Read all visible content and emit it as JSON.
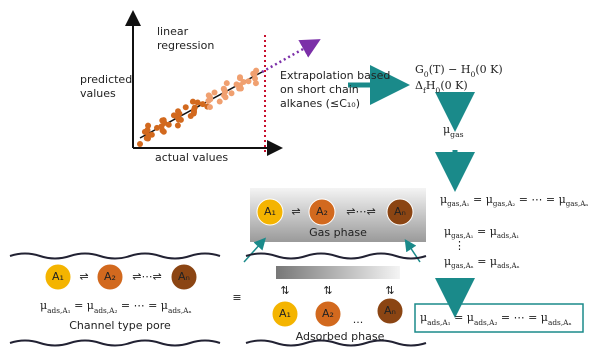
{
  "plot": {
    "y_label": "predicted values",
    "x_label": "actual values",
    "fit_label": "linear regression",
    "extrapolation": "Extrapolation based on short chain alkanes (≤C₁₀)"
  },
  "equations": {
    "thermo_1": [
      [
        "G",
        "0"
      ],
      [
        "(T) − H",
        "0"
      ],
      [
        "(0 K)"
      ]
    ],
    "thermo_2": [
      [
        "Δ",
        "f"
      ],
      [
        "H",
        "0"
      ],
      [
        "(0 K)"
      ]
    ],
    "mu_gas": [
      [
        "μ",
        "gas"
      ]
    ],
    "gas_equal": [
      [
        "μ",
        "gas,A₁"
      ],
      [
        " = μ",
        "gas,A₂"
      ],
      [
        " = ⋯ = μ",
        "gas,Aₙ"
      ]
    ],
    "equil_1": [
      [
        "μ",
        "gas,A₁"
      ],
      [
        " = μ",
        "ads,A₁"
      ]
    ],
    "vdots": [
      [
        "⋮"
      ]
    ],
    "equil_n": [
      [
        "μ",
        "gas,Aₙ"
      ],
      [
        " = μ",
        "ads,Aₙ"
      ]
    ],
    "ads_equal_box": [
      [
        "μ",
        "ads,A₁"
      ],
      [
        " = μ",
        "ads,A₂"
      ],
      [
        " = ⋯ = μ",
        "ads,Aₙ"
      ]
    ],
    "ads_equal_pore": [
      [
        "μ",
        "ads,A₁"
      ],
      [
        " = μ",
        "ads,A₂"
      ],
      [
        " = ⋯ = μ",
        "ads,Aₙ"
      ]
    ]
  },
  "pore": {
    "label": "Channel type pore",
    "species": [
      "A₁",
      "A₂",
      "Aₙ"
    ],
    "eq1": "⇌",
    "eq2": "⇌⋯⇌"
  },
  "gas": {
    "label": "Gas phase",
    "species": [
      "A₁",
      "A₂",
      "Aₙ"
    ],
    "eq1": "⇌",
    "eq2": "⇌⋯⇌"
  },
  "adsorbed": {
    "label": "Adsorbed phase",
    "species": [
      "A₁",
      "A₂",
      "Aₙ"
    ],
    "exchange": "⇅",
    "dots": "...",
    "equiv": "≡"
  }
}
